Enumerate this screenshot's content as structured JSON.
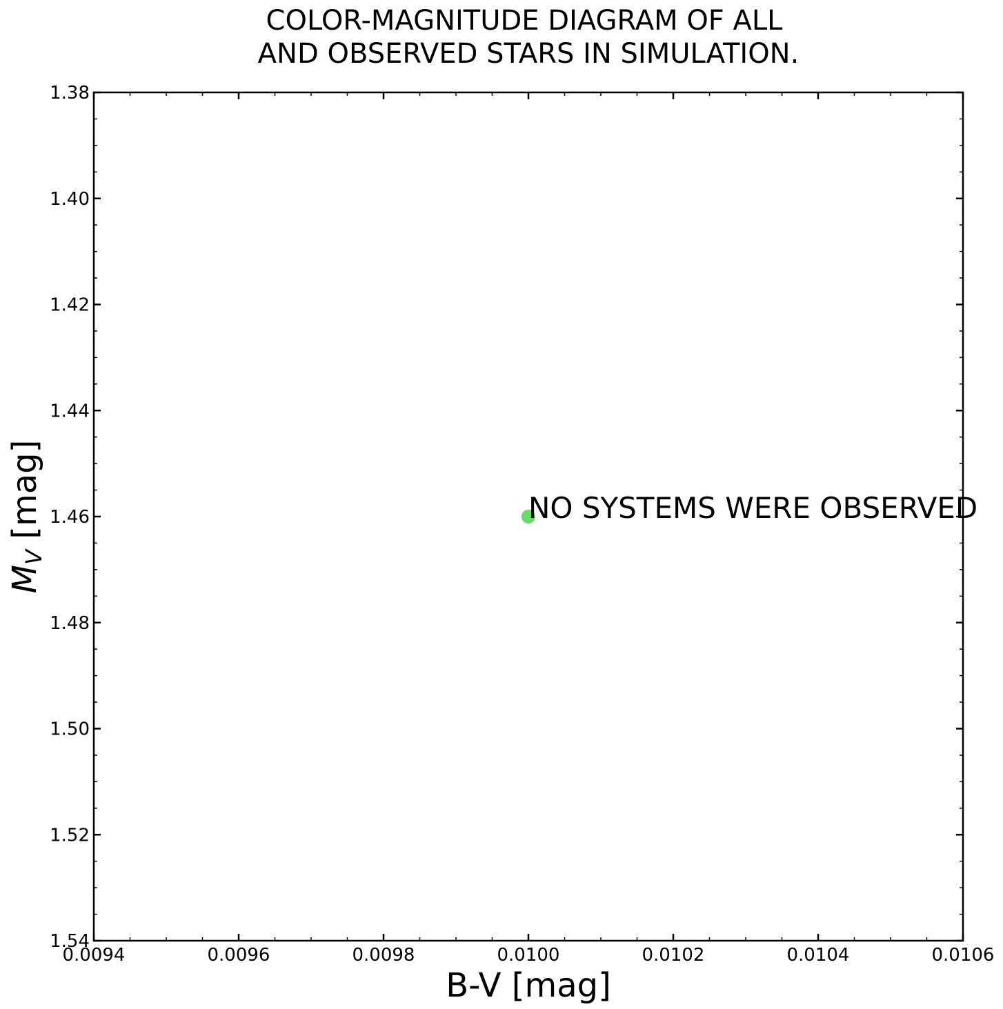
{
  "chart_data": {
    "type": "scatter",
    "title_lines": [
      "COLOR-MAGNITUDE DIAGRAM OF ALL",
      "AND OBSERVED STARS IN SIMULATION."
    ],
    "xlabel": "B-V [mag]",
    "ylabel_main": "M",
    "ylabel_sub": "V",
    "ylabel_unit": " [mag]",
    "xlim": [
      0.0094,
      0.0106
    ],
    "ylim": [
      1.38,
      1.54
    ],
    "y_inverted": true,
    "x_ticks": [
      0.0094,
      0.0096,
      0.0098,
      0.01,
      0.0102,
      0.0104,
      0.0106
    ],
    "x_tick_labels": [
      "0.0094",
      "0.0096",
      "0.0098",
      "0.0100",
      "0.0102",
      "0.0104",
      "0.0106"
    ],
    "y_ticks": [
      1.38,
      1.4,
      1.42,
      1.44,
      1.46,
      1.48,
      1.5,
      1.52,
      1.54
    ],
    "y_tick_labels": [
      "1.38",
      "1.40",
      "1.42",
      "1.44",
      "1.46",
      "1.48",
      "1.50",
      "1.52",
      "1.54"
    ],
    "grid": false,
    "series": [
      {
        "color": "#66dd66",
        "points": [
          {
            "x": 0.01,
            "y": 1.46
          }
        ]
      }
    ],
    "annotation": {
      "text": "NO SYSTEMS WERE OBSERVED",
      "x": 0.01,
      "y": 1.46
    }
  }
}
